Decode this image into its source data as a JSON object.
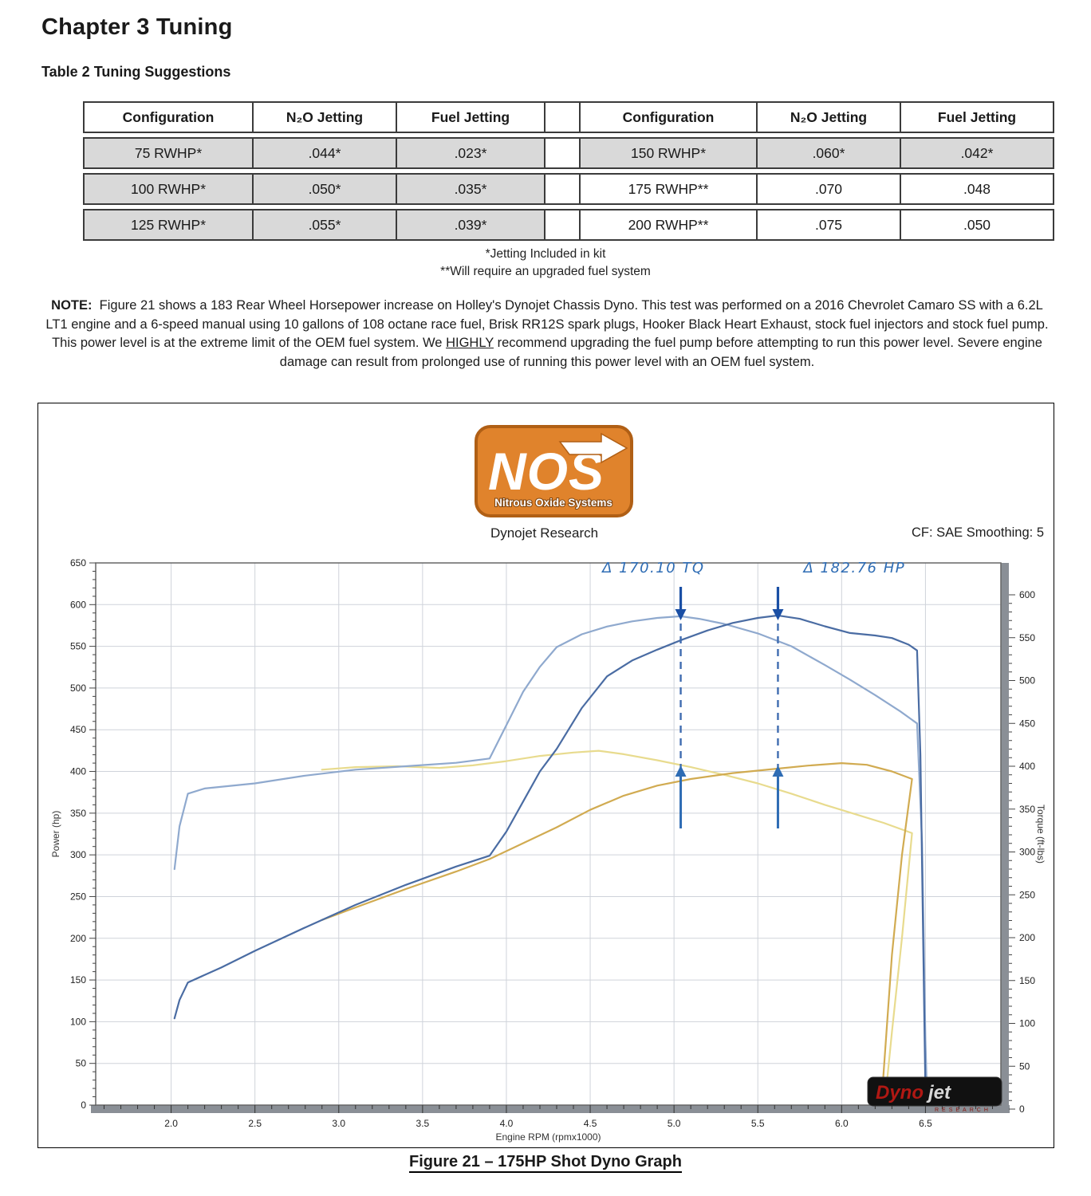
{
  "page": {
    "chapter_title": "Chapter 3 Tuning",
    "table_title": "Table 2 Tuning Suggestions"
  },
  "jetting_table": {
    "headers": [
      "Configuration",
      "N₂O Jetting",
      "Fuel Jetting"
    ],
    "left": {
      "rows": [
        [
          "75 RWHP*",
          ".044*",
          ".023*"
        ],
        [
          "100 RWHP*",
          ".050*",
          ".035*"
        ],
        [
          "125 RWHP*",
          ".055*",
          ".039*"
        ]
      ],
      "shaded_rows": [
        0,
        1,
        2
      ]
    },
    "right": {
      "rows": [
        [
          "150 RWHP*",
          ".060*",
          ".042*"
        ],
        [
          "175 RWHP**",
          ".070",
          ".048"
        ],
        [
          "200 RWHP**",
          ".075",
          ".050"
        ]
      ],
      "shaded_rows": [
        0
      ]
    },
    "footnote1": "*Jetting Included in kit",
    "footnote2": "**Will require an upgraded fuel system"
  },
  "note": {
    "label": "NOTE:",
    "text_before": "Figure 21 shows a 183 Rear Wheel Horsepower increase on Holley's Dynojet Chassis Dyno. This test was performed on a 2016 Chevrolet Camaro SS with a 6.2L LT1 engine and a 6-speed manual using 10 gallons of 108 octane race fuel, Brisk RR12S spark plugs, Hooker Black Heart Exhaust, stock fuel injectors and stock fuel pump. This power level is at the extreme limit of the OEM fuel system. We",
    "emphasis": "HIGHLY",
    "text_after": "recommend upgrading the fuel pump before attempting to run this power level. Severe engine damage can result from prolonged use of running this power level with an OEM fuel system."
  },
  "figure": {
    "nos_logo": {
      "text": "NOS",
      "subtext": "Nitrous Oxide Systems",
      "orange": "#e0832c",
      "dark_orange": "#b05f15"
    },
    "lab": "Dynojet Research",
    "cf": "CF: SAE Smoothing: 5",
    "caption": "Figure 21 – 175HP Shot Dyno Graph",
    "dynojet": {
      "red": "Dyno",
      "gray": "jet",
      "sub": "RESEARCH"
    }
  },
  "chart_data": {
    "type": "line",
    "title": "",
    "grid": true,
    "legend": "none",
    "x_axis": {
      "label": "Engine RPM (rpmx1000)",
      "range": [
        1.55,
        6.95
      ],
      "ticks": [
        2.0,
        2.5,
        3.0,
        3.5,
        4.0,
        4.5,
        5.0,
        5.5,
        6.0,
        6.5
      ],
      "minor_step": 0.1
    },
    "y_left": {
      "label": "Power (hp)",
      "range": [
        0,
        650
      ],
      "tick_step": 50,
      "minor_step": 10
    },
    "y_right": {
      "label": "Torque (ft-lbs)",
      "range": [
        0,
        600
      ],
      "tick_step": 50,
      "minor_step": 10
    },
    "series": [
      {
        "id": "torque-baseline-run",
        "axis": "right",
        "color": "#e8db8e",
        "width": 2.2,
        "points": [
          [
            2.9,
            396
          ],
          [
            3.1,
            399
          ],
          [
            3.35,
            400
          ],
          [
            3.6,
            398
          ],
          [
            3.8,
            401
          ],
          [
            4.0,
            406
          ],
          [
            4.2,
            412
          ],
          [
            4.4,
            416
          ],
          [
            4.55,
            418
          ],
          [
            4.7,
            414
          ],
          [
            4.9,
            407
          ],
          [
            5.1,
            399
          ],
          [
            5.3,
            390
          ],
          [
            5.5,
            380
          ],
          [
            5.7,
            368
          ],
          [
            5.9,
            355
          ],
          [
            6.1,
            343
          ],
          [
            6.25,
            334
          ],
          [
            6.42,
            322
          ],
          [
            6.36,
            200
          ],
          [
            6.3,
            90
          ],
          [
            6.26,
            12
          ]
        ]
      },
      {
        "id": "power-baseline-run",
        "axis": "left",
        "color": "#d1ab51",
        "width": 2.2,
        "points": [
          [
            2.9,
            222
          ],
          [
            3.1,
            237
          ],
          [
            3.4,
            259
          ],
          [
            3.7,
            280
          ],
          [
            3.9,
            295
          ],
          [
            4.1,
            314
          ],
          [
            4.3,
            333
          ],
          [
            4.5,
            354
          ],
          [
            4.7,
            371
          ],
          [
            4.9,
            383
          ],
          [
            5.1,
            391
          ],
          [
            5.35,
            398
          ],
          [
            5.6,
            403
          ],
          [
            5.8,
            407
          ],
          [
            6.0,
            410
          ],
          [
            6.15,
            408
          ],
          [
            6.3,
            400
          ],
          [
            6.42,
            391
          ],
          [
            6.36,
            300
          ],
          [
            6.3,
            180
          ],
          [
            6.24,
            10
          ]
        ]
      },
      {
        "id": "torque-nitrous-run",
        "axis": "right",
        "color": "#8fa9ce",
        "width": 2.2,
        "points": [
          [
            2.02,
            280
          ],
          [
            2.05,
            330
          ],
          [
            2.1,
            368
          ],
          [
            2.2,
            374
          ],
          [
            2.5,
            380
          ],
          [
            2.8,
            389
          ],
          [
            3.1,
            396
          ],
          [
            3.4,
            400
          ],
          [
            3.7,
            404
          ],
          [
            3.9,
            409
          ],
          [
            4.0,
            448
          ],
          [
            4.1,
            487
          ],
          [
            4.2,
            516
          ],
          [
            4.3,
            539
          ],
          [
            4.45,
            554
          ],
          [
            4.6,
            563
          ],
          [
            4.75,
            569
          ],
          [
            4.9,
            573
          ],
          [
            5.04,
            575
          ],
          [
            5.15,
            572
          ],
          [
            5.3,
            566
          ],
          [
            5.5,
            555
          ],
          [
            5.7,
            540
          ],
          [
            5.9,
            518
          ],
          [
            6.05,
            501
          ],
          [
            6.2,
            483
          ],
          [
            6.35,
            464
          ],
          [
            6.45,
            450
          ],
          [
            6.48,
            310
          ],
          [
            6.5,
            80
          ],
          [
            6.51,
            12
          ]
        ]
      },
      {
        "id": "power-nitrous-run",
        "axis": "left",
        "color": "#4a6ca3",
        "width": 2.2,
        "points": [
          [
            2.02,
            104
          ],
          [
            2.05,
            126
          ],
          [
            2.1,
            147
          ],
          [
            2.3,
            165
          ],
          [
            2.5,
            185
          ],
          [
            2.8,
            213
          ],
          [
            3.1,
            240
          ],
          [
            3.4,
            264
          ],
          [
            3.7,
            286
          ],
          [
            3.9,
            299
          ],
          [
            4.0,
            328
          ],
          [
            4.1,
            364
          ],
          [
            4.2,
            400
          ],
          [
            4.3,
            427
          ],
          [
            4.45,
            476
          ],
          [
            4.6,
            514
          ],
          [
            4.75,
            533
          ],
          [
            4.9,
            546
          ],
          [
            5.05,
            558
          ],
          [
            5.2,
            569
          ],
          [
            5.35,
            578
          ],
          [
            5.5,
            584
          ],
          [
            5.62,
            587
          ],
          [
            5.75,
            583
          ],
          [
            5.9,
            574
          ],
          [
            6.05,
            566
          ],
          [
            6.2,
            563
          ],
          [
            6.3,
            560
          ],
          [
            6.4,
            552
          ],
          [
            6.45,
            545
          ],
          [
            6.47,
            420
          ],
          [
            6.49,
            150
          ],
          [
            6.5,
            15
          ]
        ]
      }
    ],
    "annotations": [
      {
        "symbol": "Δ",
        "text": "170.10 TQ",
        "rpm": 5.04,
        "side": "left"
      },
      {
        "symbol": "Δ",
        "text": "182.76 HP",
        "rpm": 5.62,
        "side": "right"
      }
    ],
    "annotation_color": "#2e6cb4"
  }
}
